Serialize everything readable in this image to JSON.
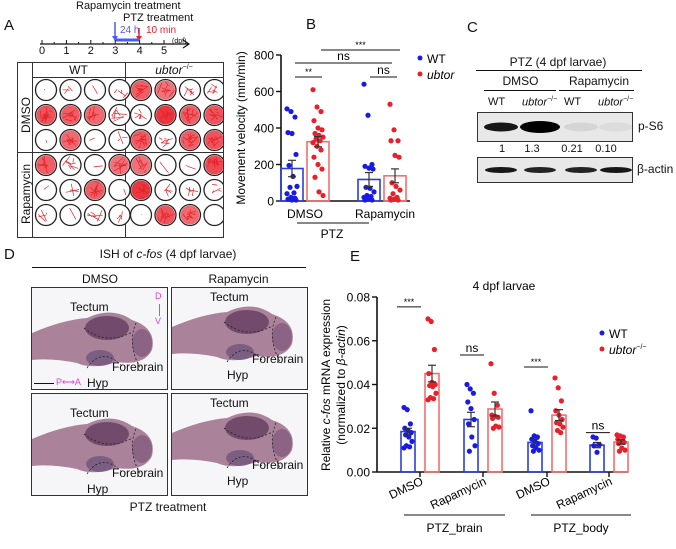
{
  "panel_labels": {
    "a": "A",
    "b": "B",
    "c": "C",
    "d": "D",
    "e": "E"
  },
  "panel_a": {
    "timeline": {
      "rapamycin_label": "Rapamycin treatment",
      "ptz_label": "PTZ treatment",
      "interval_24h": "24 h",
      "interval_10min": "10 min",
      "ticks": [
        "0",
        "1",
        "2",
        "3",
        "4",
        "5"
      ],
      "unit": "(dpf)",
      "rapamycin_color": "#4a5cf0",
      "ptz_color": "#e8202a"
    },
    "columns": [
      "WT",
      "ubtor"
    ],
    "genotype_superscript": "−/−",
    "rows": [
      "DMSO",
      "Rapamycin"
    ],
    "well_intensity": [
      [
        [
          0.05,
          0.2,
          0.05,
          0.25
        ],
        [
          0.85,
          0.8,
          0.75,
          0.5
        ],
        [
          0.05,
          0.75,
          0.05,
          0.2
        ],
        [
          0.8,
          0.7,
          0.4,
          0.45
        ],
        [
          0.4,
          1.0,
          0.8,
          0.85
        ],
        [
          0.8,
          0.55,
          0.8,
          0.85
        ]
      ],
      [
        [
          0.8,
          0.6,
          0.05,
          0.7
        ],
        [
          0.05,
          0.25,
          0.8,
          0.05
        ],
        [
          0.3,
          0.05,
          0.45,
          0.35
        ],
        [
          0.7,
          0.05,
          0.05,
          0.9
        ],
        [
          1.0,
          0.3,
          0.45,
          0.3
        ],
        [
          0.05,
          0.85,
          0.75,
          0.02
        ]
      ]
    ]
  },
  "chart_data": [
    {
      "id": "B",
      "type": "bar",
      "ylabel": "Movement velocity (mm/min)",
      "ylim": [
        0,
        800
      ],
      "yticks": [
        "0",
        "200",
        "400",
        "600",
        "800"
      ],
      "categories": [
        "DMSO",
        "Rapamycin"
      ],
      "group_label": "PTZ",
      "legend": [
        {
          "name": "WT",
          "color": "#1a1ae6"
        },
        {
          "name": "ubtor",
          "sup": "−/−",
          "color": "#e8202a"
        }
      ],
      "legend_position": "top-right",
      "series": [
        {
          "name": "WT",
          "color": "#1a1ae6",
          "bar_color": "#2b3fd8",
          "means": [
            178,
            118
          ],
          "sem": [
            45,
            38
          ],
          "points": [
            [
              505,
              490,
              460,
              375,
              370,
              255,
              195,
              135,
              80,
              75,
              45,
              40,
              20,
              15,
              10,
              5,
              5
            ],
            [
              640,
              470,
              200,
              190,
              180,
              175,
              75,
              70,
              50,
              30,
              25,
              20,
              10,
              5,
              5
            ]
          ]
        },
        {
          "name": "ubtor−/−",
          "color": "#e8202a",
          "bar_color": "#f07070",
          "means": [
            325,
            138
          ],
          "sem": [
            28,
            38
          ],
          "points": [
            [
              610,
              515,
              490,
              440,
              400,
              390,
              370,
              360,
              350,
              340,
              330,
              320,
              300,
              280,
              240,
              200,
              175,
              130,
              50,
              30
            ],
            [
              530,
              390,
              330,
              330,
              250,
              240,
              100,
              80,
              60,
              40,
              20,
              15,
              10,
              5,
              5
            ]
          ]
        }
      ],
      "significance": [
        {
          "label": "**",
          "between": "DMSO WT vs DMSO ubtor"
        },
        {
          "label": "ns",
          "between": "DMSO WT vs Rapamycin WT"
        },
        {
          "label": "ns",
          "between": "Rapamycin WT vs Rapamycin ubtor"
        },
        {
          "label": "***",
          "between": "DMSO ubtor vs Rapamycin ubtor"
        }
      ]
    },
    {
      "id": "E",
      "type": "bar",
      "title": "4 dpf larvae",
      "ylabel_line1": "Relative c-fos mRNA expression",
      "ylabel_line2": "(normalized to β-actin)",
      "ylim": [
        0,
        0.08
      ],
      "yticks": [
        "0.00",
        "0.02",
        "0.04",
        "0.06",
        "0.08"
      ],
      "categories": [
        "DMSO",
        "Rapamycin",
        "DMSO",
        "Rapamycin"
      ],
      "groups": [
        {
          "label": "PTZ_brain",
          "categories": [
            0,
            1
          ]
        },
        {
          "label": "PTZ_body",
          "categories": [
            2,
            3
          ]
        }
      ],
      "legend": [
        {
          "name": "WT",
          "color": "#1a1ae6"
        },
        {
          "name": "ubtor",
          "sup": "−/−",
          "color": "#e8202a"
        }
      ],
      "legend_position": "top-right",
      "series": [
        {
          "name": "WT",
          "color": "#1a1ae6",
          "bar_color": "#2b3fd8",
          "means": [
            0.0185,
            0.024,
            0.0135,
            0.0123
          ],
          "sem": [
            0.0015,
            0.0033,
            0.0015,
            0.0012
          ],
          "points": [
            [
              0.0295,
              0.0285,
              0.022,
              0.02,
              0.019,
              0.018,
              0.017,
              0.016,
              0.014,
              0.012,
              0.0115,
              0.011
            ],
            [
              0.04,
              0.038,
              0.036,
              0.032,
              0.029,
              0.024,
              0.022,
              0.016,
              0.012,
              0.0095
            ],
            [
              0.028,
              0.0165,
              0.016,
              0.015,
              0.014,
              0.013,
              0.012,
              0.011,
              0.01,
              0.0095
            ],
            [
              0.016,
              0.0155,
              0.0125,
              0.012,
              0.009
            ]
          ]
        },
        {
          "name": "ubtor−/−",
          "color": "#e8202a",
          "bar_color": "#f07070",
          "means": [
            0.045,
            0.0288,
            0.026,
            0.0137
          ],
          "sem": [
            0.0038,
            0.0032,
            0.0025,
            0.001
          ],
          "points": [
            [
              0.07,
              0.0688,
              0.056,
              0.045,
              0.041,
              0.04,
              0.0395,
              0.039,
              0.036,
              0.034,
              0.0335,
              0.033
            ],
            [
              0.0495,
              0.036,
              0.0305,
              0.026,
              0.0255,
              0.025,
              0.0245,
              0.021,
              0.0205,
              0.02
            ],
            [
              0.043,
              0.0385,
              0.0325,
              0.028,
              0.026,
              0.024,
              0.0225,
              0.022,
              0.0205,
              0.019,
              0.018
            ],
            [
              0.017,
              0.0165,
              0.016,
              0.015,
              0.014,
              0.0135,
              0.013,
              0.011,
              0.01,
              0.0095
            ]
          ]
        }
      ],
      "significance": [
        {
          "label": "***",
          "category": 0
        },
        {
          "label": "ns",
          "category": 1
        },
        {
          "label": "***",
          "category": 2
        },
        {
          "label": "ns",
          "category": 3
        }
      ]
    }
  ],
  "panel_c": {
    "header": "PTZ (4 dpf larvae)",
    "treatments": [
      "DMSO",
      "Rapamycin"
    ],
    "lanes": [
      {
        "g": "WT",
        "it": false
      },
      {
        "g": "ubtor",
        "it": true
      },
      {
        "g": "WT",
        "it": false
      },
      {
        "g": "ubtor",
        "it": true
      }
    ],
    "genotype_superscript": "−/−",
    "rows": [
      {
        "label": "p-S6",
        "intensities": [
          0.9,
          1.0,
          0.08,
          0.05
        ]
      },
      {
        "label": "β-actin",
        "intensities": [
          0.9,
          0.85,
          0.85,
          0.9
        ]
      }
    ],
    "quantification": [
      "1",
      "1.3",
      "0.21",
      "0.10"
    ]
  },
  "panel_d": {
    "title_prefix": "ISH of ",
    "title_gene": "c-fos",
    "title_suffix": " (4 dpf larvae)",
    "columns": [
      "DMSO",
      "Rapamycin"
    ],
    "region_labels": {
      "tectum": "Tectum",
      "forebrain": "Forebrain",
      "hyp": "Hyp"
    },
    "axis_dv_top": "D",
    "axis_dv_bottom": "V",
    "axis_pa": "P⟷A",
    "footer": "PTZ treatment",
    "axis_color": "#e040e0"
  }
}
